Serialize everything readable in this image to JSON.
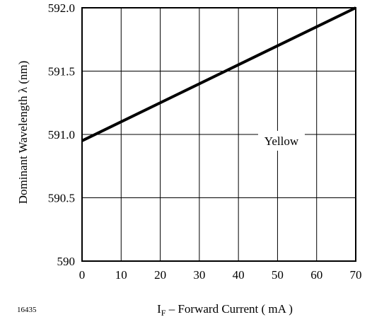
{
  "chart_data": {
    "type": "line",
    "xlabel": {
      "main": "I",
      "subscript": "F",
      "rest": " – Forward Current ( mA )"
    },
    "ylabel": "Dominant Wavelength λ  (nm)",
    "xlim": [
      0,
      70
    ],
    "ylim": [
      590,
      592
    ],
    "x_ticks": [
      0,
      10,
      20,
      30,
      40,
      50,
      60,
      70
    ],
    "y_ticks": [
      590,
      590.5,
      591,
      591.5,
      592
    ],
    "x_tick_labels": [
      "0",
      "10",
      "20",
      "30",
      "40",
      "50",
      "60",
      "70"
    ],
    "y_tick_labels": [
      "590",
      "590.5",
      "591.0",
      "591.5",
      "592.0"
    ],
    "grid": true,
    "series": [
      {
        "x": [
          0,
          70
        ],
        "y": [
          590.95,
          592.0
        ]
      }
    ],
    "annotations": [
      {
        "text": "Yellow",
        "x": 51,
        "y": 590.95
      }
    ]
  },
  "figure_id": "16435"
}
